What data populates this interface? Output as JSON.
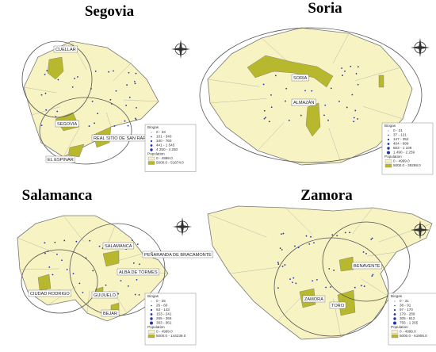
{
  "panels": [
    {
      "title": "Segovia",
      "places": [
        "CUELLAR",
        "SEGOVIA",
        "REAL SITIO DE SAN RAFAEL",
        "EL ESPINAR"
      ],
      "legend": {
        "title": "Biogas",
        "biogas": [
          "0 - 33",
          "101 - 340",
          "340 - 760",
          "441 - 1 545",
          "4 250 - 4 250"
        ],
        "population_title": "Population",
        "population": [
          "0 - 4999.0",
          "5000.0 - 51674.0"
        ]
      }
    },
    {
      "title": "Soria",
      "places": [
        "SORIA",
        "ALMAZÁN"
      ],
      "legend": {
        "title": "Biogas",
        "biogas": [
          "0 - 31",
          "37 - 121",
          "147 - 352",
          "404 - 699",
          "803 - 1 109",
          "1 490 - 2 259"
        ],
        "population_title": "Population",
        "population": [
          "0 - 4999.0",
          "5000.0 - 39298.0"
        ]
      }
    },
    {
      "title": "Salamanca",
      "places": [
        "SALAMANCA",
        "PEÑARANDA DE BRACAMONTE",
        "ALBA DE TORMES",
        "CIUDAD RODRIGO",
        "GUIJUELO",
        "BEJAR"
      ],
      "legend": {
        "title": "Biogas",
        "biogas": [
          "0 - 25",
          "26 - 60",
          "63 - 143",
          "153 - 241",
          "265 - 366",
          "393 - 961"
        ],
        "population_title": "Population",
        "population": [
          "0 - 4999.0",
          "5000.0 - 144239.0"
        ]
      }
    },
    {
      "title": "Zamora",
      "places": [
        "BENAVENTE",
        "ZAMORA",
        "TORO"
      ],
      "legend": {
        "title": "Biogas",
        "biogas": [
          "0 - 31",
          "38 - 91",
          "97 - 170",
          "179 - 289",
          "305 - 612",
          "756 - 1 265"
        ],
        "population_title": "Population",
        "population": [
          "0 - 4999.0",
          "5000.0 - 61906.0"
        ]
      }
    }
  ]
}
